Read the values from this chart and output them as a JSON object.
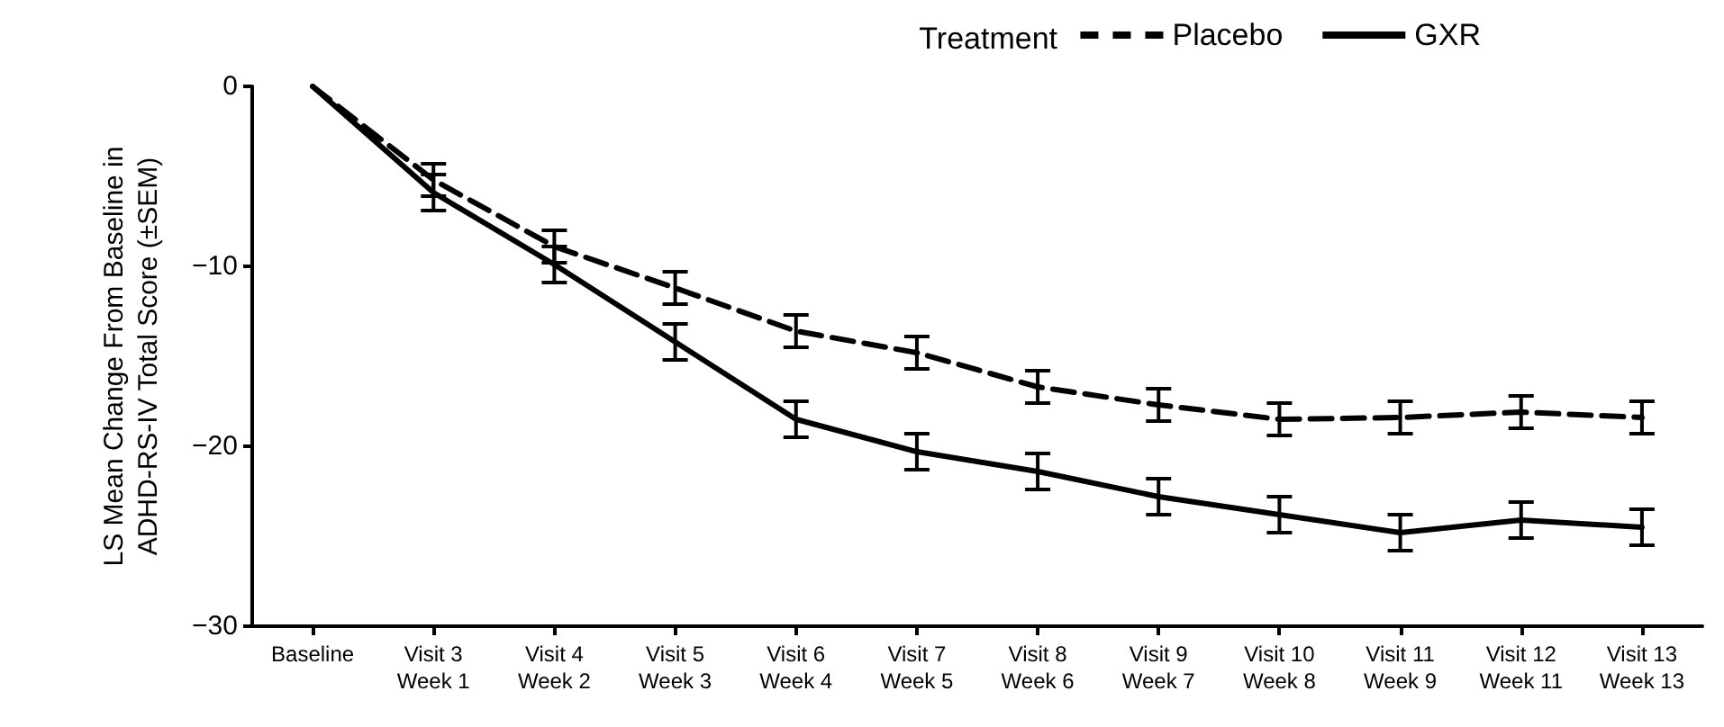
{
  "chart_data": {
    "type": "line",
    "ylabel": "LS Mean Change From Baseline in\nADHD-RS-IV Total Score (±SEM)",
    "legend_title": "Treatment",
    "legend": "top right",
    "grid": false,
    "marker": "none",
    "categories": [
      "Baseline",
      "Visit 3\nWeek 1",
      "Visit 4\nWeek 2",
      "Visit 5\nWeek 3",
      "Visit 6\nWeek 4",
      "Visit 7\nWeek 5",
      "Visit 8\nWeek 6",
      "Visit 9\nWeek 7",
      "Visit 10\nWeek 8",
      "Visit 11\nWeek 9",
      "Visit 12\nWeek 11",
      "Visit 13\nWeek 13"
    ],
    "ylim": [
      -30,
      0
    ],
    "yticks": [
      -30,
      -20,
      -10,
      0
    ],
    "series": [
      {
        "name": "Placebo",
        "color": "#000000",
        "line_style": "dashed",
        "values": [
          0,
          -5.2,
          -8.9,
          -11.2,
          -13.6,
          -14.8,
          -16.7,
          -17.7,
          -18.5,
          -18.4,
          -18.1,
          -18.4
        ],
        "errors": [
          null,
          0.9,
          0.9,
          0.9,
          0.9,
          0.9,
          0.9,
          0.9,
          0.9,
          0.9,
          0.9,
          0.9
        ]
      },
      {
        "name": "GXR",
        "color": "#000000",
        "line_style": "solid",
        "values": [
          0,
          -5.9,
          -9.9,
          -14.2,
          -18.5,
          -20.3,
          -21.4,
          -22.8,
          -23.8,
          -24.8,
          -24.1,
          -24.5
        ],
        "errors": [
          null,
          1.0,
          1.0,
          1.0,
          1.0,
          1.0,
          1.0,
          1.0,
          1.0,
          1.0,
          1.0,
          1.0
        ]
      }
    ]
  }
}
